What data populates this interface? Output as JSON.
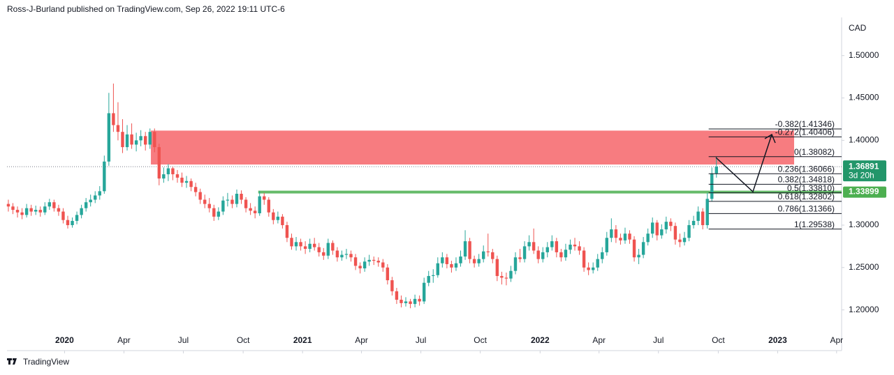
{
  "header": "Ross-J-Burland published on TradingView.com, Sep 26, 2022 19:11 UTC-6",
  "footer": "TradingView",
  "chart_data": {
    "type": "candlestick",
    "y_unit": "CAD",
    "up_color": "#26a69a",
    "down_color": "#ef5350",
    "xlim": [
      -0.3,
      182.4
    ],
    "ylim": [
      1.152,
      1.545
    ],
    "xticks": [
      {
        "value": 12.3,
        "label": "2020"
      },
      {
        "value": 25.3,
        "label": "Apr"
      },
      {
        "value": 38.3,
        "label": "Jul"
      },
      {
        "value": 51.4,
        "label": "Oct"
      },
      {
        "value": 64.4,
        "label": "2021"
      },
      {
        "value": 77.3,
        "label": "Apr"
      },
      {
        "value": 90.3,
        "label": "Jul"
      },
      {
        "value": 103.3,
        "label": "Oct"
      },
      {
        "value": 116.4,
        "label": "2022"
      },
      {
        "value": 129.3,
        "label": "Apr"
      },
      {
        "value": 142.3,
        "label": "Jul"
      },
      {
        "value": 155.4,
        "label": "Oct"
      },
      {
        "value": 168.4,
        "label": "2023"
      },
      {
        "value": 181.3,
        "label": "Apr"
      }
    ],
    "yticks": [
      {
        "value": 1.2,
        "label": "1.20000"
      },
      {
        "value": 1.25,
        "label": "1.25000"
      },
      {
        "value": 1.3,
        "label": "1.30000"
      },
      {
        "value": 1.4,
        "label": "1.40000"
      },
      {
        "value": 1.45,
        "label": "1.45000"
      },
      {
        "value": 1.5,
        "label": "1.50000"
      }
    ],
    "candles": [
      [
        1.325,
        1.33,
        1.316,
        1.322
      ],
      [
        1.322,
        1.326,
        1.313,
        1.318
      ],
      [
        1.318,
        1.322,
        1.309,
        1.315
      ],
      [
        1.315,
        1.32,
        1.307,
        1.312
      ],
      [
        1.312,
        1.325,
        1.309,
        1.32
      ],
      [
        1.32,
        1.324,
        1.311,
        1.316
      ],
      [
        1.316,
        1.323,
        1.312,
        1.318
      ],
      [
        1.318,
        1.322,
        1.31,
        1.315
      ],
      [
        1.315,
        1.327,
        1.312,
        1.322
      ],
      [
        1.322,
        1.331,
        1.318,
        1.327
      ],
      [
        1.327,
        1.33,
        1.316,
        1.32
      ],
      [
        1.32,
        1.324,
        1.311,
        1.316
      ],
      [
        1.316,
        1.32,
        1.302,
        1.306
      ],
      [
        1.306,
        1.311,
        1.296,
        1.3
      ],
      [
        1.3,
        1.309,
        1.297,
        1.305
      ],
      [
        1.305,
        1.316,
        1.301,
        1.312
      ],
      [
        1.312,
        1.324,
        1.308,
        1.32
      ],
      [
        1.32,
        1.332,
        1.316,
        1.327
      ],
      [
        1.327,
        1.336,
        1.322,
        1.33
      ],
      [
        1.33,
        1.34,
        1.326,
        1.335
      ],
      [
        1.335,
        1.346,
        1.33,
        1.34
      ],
      [
        1.34,
        1.382,
        1.337,
        1.375
      ],
      [
        1.375,
        1.456,
        1.37,
        1.432
      ],
      [
        1.432,
        1.467,
        1.41,
        1.418
      ],
      [
        1.418,
        1.445,
        1.4,
        1.41
      ],
      [
        1.41,
        1.425,
        1.385,
        1.392
      ],
      [
        1.392,
        1.418,
        1.388,
        1.407
      ],
      [
        1.407,
        1.42,
        1.39,
        1.395
      ],
      [
        1.395,
        1.409,
        1.387,
        1.4
      ],
      [
        1.4,
        1.412,
        1.393,
        1.405
      ],
      [
        1.405,
        1.41,
        1.388,
        1.395
      ],
      [
        1.395,
        1.414,
        1.39,
        1.41
      ],
      [
        1.41,
        1.414,
        1.386,
        1.392
      ],
      [
        1.392,
        1.396,
        1.347,
        1.355
      ],
      [
        1.355,
        1.368,
        1.35,
        1.36
      ],
      [
        1.36,
        1.372,
        1.352,
        1.367
      ],
      [
        1.367,
        1.369,
        1.353,
        1.36
      ],
      [
        1.36,
        1.365,
        1.35,
        1.356
      ],
      [
        1.356,
        1.362,
        1.345,
        1.35
      ],
      [
        1.35,
        1.358,
        1.344,
        1.352
      ],
      [
        1.352,
        1.355,
        1.34,
        1.345
      ],
      [
        1.345,
        1.35,
        1.334,
        1.339
      ],
      [
        1.339,
        1.343,
        1.325,
        1.33
      ],
      [
        1.33,
        1.336,
        1.32,
        1.325
      ],
      [
        1.325,
        1.332,
        1.315,
        1.32
      ],
      [
        1.32,
        1.324,
        1.305,
        1.31
      ],
      [
        1.31,
        1.321,
        1.306,
        1.316
      ],
      [
        1.316,
        1.334,
        1.312,
        1.329
      ],
      [
        1.329,
        1.338,
        1.322,
        1.33
      ],
      [
        1.33,
        1.335,
        1.32,
        1.325
      ],
      [
        1.325,
        1.342,
        1.321,
        1.337
      ],
      [
        1.337,
        1.341,
        1.325,
        1.33
      ],
      [
        1.33,
        1.333,
        1.315,
        1.32
      ],
      [
        1.32,
        1.326,
        1.312,
        1.317
      ],
      [
        1.317,
        1.322,
        1.308,
        1.314
      ],
      [
        1.314,
        1.34,
        1.311,
        1.334
      ],
      [
        1.334,
        1.338,
        1.324,
        1.33
      ],
      [
        1.33,
        1.333,
        1.31,
        1.315
      ],
      [
        1.315,
        1.319,
        1.301,
        1.306
      ],
      [
        1.306,
        1.316,
        1.302,
        1.31
      ],
      [
        1.31,
        1.313,
        1.296,
        1.3
      ],
      [
        1.3,
        1.304,
        1.28,
        1.285
      ],
      [
        1.285,
        1.29,
        1.271,
        1.275
      ],
      [
        1.275,
        1.286,
        1.27,
        1.28
      ],
      [
        1.28,
        1.284,
        1.27,
        1.275
      ],
      [
        1.275,
        1.281,
        1.266,
        1.272
      ],
      [
        1.272,
        1.284,
        1.268,
        1.278
      ],
      [
        1.278,
        1.285,
        1.27,
        1.274
      ],
      [
        1.274,
        1.279,
        1.263,
        1.268
      ],
      [
        1.268,
        1.273,
        1.259,
        1.264
      ],
      [
        1.264,
        1.284,
        1.26,
        1.279
      ],
      [
        1.279,
        1.282,
        1.265,
        1.27
      ],
      [
        1.27,
        1.274,
        1.257,
        1.262
      ],
      [
        1.262,
        1.27,
        1.258,
        1.265
      ],
      [
        1.265,
        1.272,
        1.26,
        1.266
      ],
      [
        1.266,
        1.27,
        1.257,
        1.262
      ],
      [
        1.262,
        1.266,
        1.247,
        1.252
      ],
      [
        1.252,
        1.256,
        1.243,
        1.249
      ],
      [
        1.249,
        1.262,
        1.245,
        1.257
      ],
      [
        1.257,
        1.265,
        1.252,
        1.259
      ],
      [
        1.259,
        1.263,
        1.253,
        1.258
      ],
      [
        1.258,
        1.262,
        1.251,
        1.256
      ],
      [
        1.256,
        1.26,
        1.245,
        1.25
      ],
      [
        1.25,
        1.254,
        1.23,
        1.235
      ],
      [
        1.235,
        1.239,
        1.217,
        1.222
      ],
      [
        1.222,
        1.226,
        1.207,
        1.212
      ],
      [
        1.212,
        1.217,
        1.203,
        1.208
      ],
      [
        1.208,
        1.215,
        1.204,
        1.21
      ],
      [
        1.21,
        1.213,
        1.202,
        1.207
      ],
      [
        1.207,
        1.218,
        1.203,
        1.213
      ],
      [
        1.213,
        1.217,
        1.205,
        1.21
      ],
      [
        1.21,
        1.238,
        1.207,
        1.232
      ],
      [
        1.232,
        1.246,
        1.228,
        1.24
      ],
      [
        1.24,
        1.248,
        1.232,
        1.241
      ],
      [
        1.241,
        1.262,
        1.238,
        1.255
      ],
      [
        1.255,
        1.268,
        1.25,
        1.262
      ],
      [
        1.262,
        1.266,
        1.249,
        1.254
      ],
      [
        1.254,
        1.258,
        1.244,
        1.25
      ],
      [
        1.25,
        1.262,
        1.246,
        1.255
      ],
      [
        1.255,
        1.27,
        1.251,
        1.263
      ],
      [
        1.263,
        1.294,
        1.259,
        1.281
      ],
      [
        1.281,
        1.285,
        1.255,
        1.26
      ],
      [
        1.26,
        1.264,
        1.25,
        1.255
      ],
      [
        1.255,
        1.266,
        1.251,
        1.26
      ],
      [
        1.26,
        1.276,
        1.256,
        1.269
      ],
      [
        1.269,
        1.29,
        1.263,
        1.268
      ],
      [
        1.268,
        1.272,
        1.255,
        1.26
      ],
      [
        1.26,
        1.264,
        1.234,
        1.24
      ],
      [
        1.24,
        1.245,
        1.23,
        1.238
      ],
      [
        1.238,
        1.244,
        1.229,
        1.237
      ],
      [
        1.237,
        1.252,
        1.233,
        1.246
      ],
      [
        1.246,
        1.268,
        1.242,
        1.262
      ],
      [
        1.262,
        1.272,
        1.256,
        1.26
      ],
      [
        1.26,
        1.281,
        1.256,
        1.275
      ],
      [
        1.275,
        1.288,
        1.27,
        1.28
      ],
      [
        1.28,
        1.296,
        1.266,
        1.27
      ],
      [
        1.27,
        1.275,
        1.255,
        1.26
      ],
      [
        1.26,
        1.274,
        1.256,
        1.268
      ],
      [
        1.268,
        1.28,
        1.262,
        1.274
      ],
      [
        1.274,
        1.288,
        1.27,
        1.281
      ],
      [
        1.281,
        1.285,
        1.262,
        1.268
      ],
      [
        1.268,
        1.272,
        1.257,
        1.262
      ],
      [
        1.262,
        1.278,
        1.258,
        1.271
      ],
      [
        1.271,
        1.283,
        1.266,
        1.277
      ],
      [
        1.277,
        1.285,
        1.27,
        1.275
      ],
      [
        1.275,
        1.281,
        1.265,
        1.27
      ],
      [
        1.27,
        1.274,
        1.245,
        1.25
      ],
      [
        1.25,
        1.256,
        1.241,
        1.247
      ],
      [
        1.247,
        1.256,
        1.243,
        1.25
      ],
      [
        1.25,
        1.266,
        1.246,
        1.26
      ],
      [
        1.26,
        1.274,
        1.255,
        1.268
      ],
      [
        1.268,
        1.292,
        1.264,
        1.285
      ],
      [
        1.285,
        1.308,
        1.28,
        1.295
      ],
      [
        1.295,
        1.3,
        1.279,
        1.285
      ],
      [
        1.285,
        1.29,
        1.277,
        1.282
      ],
      [
        1.282,
        1.297,
        1.278,
        1.29
      ],
      [
        1.29,
        1.294,
        1.278,
        1.283
      ],
      [
        1.283,
        1.287,
        1.257,
        1.262
      ],
      [
        1.262,
        1.272,
        1.254,
        1.265
      ],
      [
        1.265,
        1.286,
        1.261,
        1.28
      ],
      [
        1.28,
        1.296,
        1.276,
        1.29
      ],
      [
        1.29,
        1.309,
        1.285,
        1.303
      ],
      [
        1.303,
        1.306,
        1.282,
        1.288
      ],
      [
        1.288,
        1.301,
        1.284,
        1.295
      ],
      [
        1.295,
        1.31,
        1.29,
        1.304
      ],
      [
        1.304,
        1.308,
        1.293,
        1.299
      ],
      [
        1.299,
        1.303,
        1.277,
        1.283
      ],
      [
        1.283,
        1.29,
        1.274,
        1.28
      ],
      [
        1.28,
        1.292,
        1.276,
        1.285
      ],
      [
        1.285,
        1.306,
        1.281,
        1.3
      ],
      [
        1.3,
        1.311,
        1.296,
        1.305
      ],
      [
        1.305,
        1.322,
        1.3,
        1.316
      ],
      [
        1.316,
        1.32,
        1.295,
        1.3
      ],
      [
        1.3,
        1.338,
        1.296,
        1.331
      ],
      [
        1.331,
        1.368,
        1.328,
        1.361
      ],
      [
        1.361,
        1.381,
        1.356,
        1.369
      ]
    ],
    "zone": {
      "top": 1.4115,
      "bottom": 1.3715,
      "x_start": 31.2,
      "x_end": 172,
      "color": "#f77c80"
    },
    "support": {
      "value": 1.33899,
      "x_start": 54.7,
      "color": "#66bb6a",
      "tag_color": "#4caf50"
    },
    "last_price": {
      "value": 1.36891,
      "countdown": "3d 20h",
      "color": "#22966a"
    },
    "fib_x_start": 153.3,
    "fib_levels": [
      {
        "value": 1.41346,
        "label": "-0.382(1.41346)"
      },
      {
        "value": 1.40406,
        "label": "-0.272(1.40406)"
      },
      {
        "value": 1.38082,
        "label": "0(1.38082)"
      },
      {
        "value": 1.36066,
        "label": "0.236(1.36066)"
      },
      {
        "value": 1.34818,
        "label": "0.382(1.34818)"
      },
      {
        "value": 1.3381,
        "label": "0.5(1.33810)"
      },
      {
        "value": 1.32802,
        "label": "0.618(1.32802)"
      },
      {
        "value": 1.31366,
        "label": "0.786(1.31366)"
      },
      {
        "value": 1.29538,
        "label": "1(1.29538)"
      }
    ]
  }
}
